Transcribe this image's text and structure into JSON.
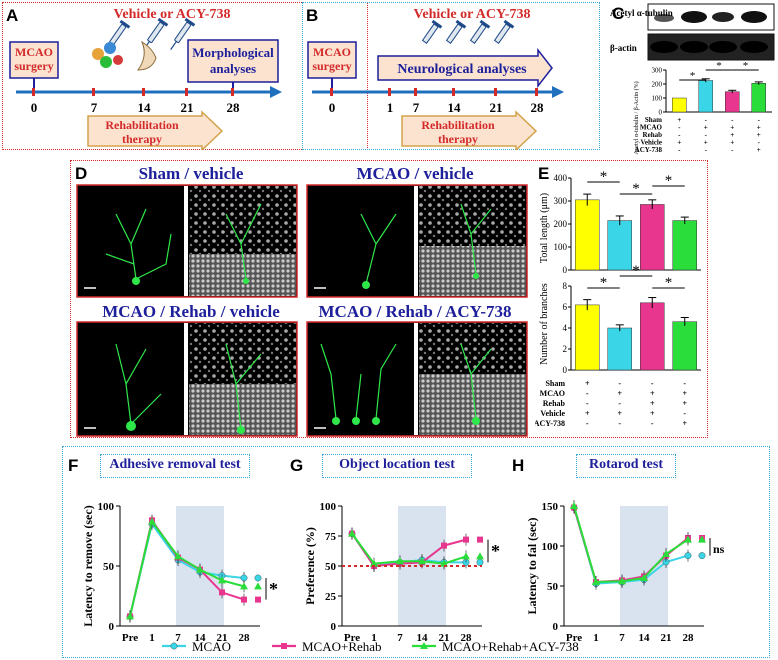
{
  "panelA": {
    "letter": "A",
    "treatment": "Vehicle or ACY-738",
    "surgery": "MCAO surgery",
    "morph": "Morphological analyses",
    "rehab": "Rehabilitation therapy",
    "ticks": [
      "0",
      "7",
      "14",
      "21",
      "28"
    ]
  },
  "panelB": {
    "letter": "B",
    "treatment": "Vehicle or ACY-738",
    "surgery": "MCAO surgery",
    "neuro": "Neurological analyses",
    "rehab": "Rehabilitation therapy",
    "ticks": [
      "0",
      "1",
      "7",
      "14",
      "21",
      "28"
    ]
  },
  "panelC": {
    "letter": "C",
    "blot1": "Acetyl α-tubulin",
    "blot2": "β-actin",
    "ylabel": "Acetyl α-tubulin / β-Actin (%)",
    "row_labels": [
      "Sham",
      "MCAO",
      "Rehab",
      "Vehicle",
      "ACY-738"
    ],
    "signs": [
      [
        "+",
        "-",
        "-",
        "-"
      ],
      [
        "-",
        "+",
        "+",
        "+"
      ],
      [
        "-",
        "-",
        "+",
        "+"
      ],
      [
        "+",
        "+",
        "+",
        "-"
      ],
      [
        "-",
        "-",
        "-",
        "+"
      ]
    ],
    "star": "*",
    "colors": [
      "#ffff00",
      "#3ad6e8",
      "#e8358d",
      "#2bdd3a"
    ]
  },
  "chart_data": [
    {
      "type": "bar",
      "panel": "C",
      "ylabel": "Acetyl α-tubulin / β-Actin (%)",
      "ylim": [
        0,
        300
      ],
      "yticks": [
        "0",
        "100",
        "200",
        "300"
      ],
      "values": [
        100,
        225,
        145,
        205
      ],
      "errors": [
        0,
        12,
        10,
        10
      ]
    },
    {
      "type": "bar",
      "panel": "E-top",
      "ylabel": "Total length (μm)",
      "ylim": [
        0,
        400
      ],
      "yticks": [
        "0",
        "100",
        "200",
        "300",
        "400"
      ],
      "values": [
        305,
        215,
        285,
        215
      ],
      "errors": [
        25,
        20,
        20,
        15
      ]
    },
    {
      "type": "bar",
      "panel": "E-bottom",
      "ylabel": "Number of branches",
      "ylim": [
        0,
        8
      ],
      "yticks": [
        "0",
        "2",
        "4",
        "6",
        "8"
      ],
      "values": [
        6.2,
        4.0,
        6.4,
        4.6
      ],
      "errors": [
        0.5,
        0.3,
        0.5,
        0.4
      ]
    },
    {
      "type": "line",
      "panel": "F",
      "title": "Adhesive removal test",
      "ylabel": "Latency to remove (sec)",
      "x": [
        "Pre",
        "1",
        "7",
        "14",
        "21",
        "28"
      ],
      "ylim": [
        0,
        100
      ],
      "yticks": [
        "0",
        "50",
        "100"
      ],
      "series": [
        {
          "name": "MCAO",
          "values": [
            8,
            85,
            55,
            45,
            42,
            40
          ]
        },
        {
          "name": "MCAO+Rehab",
          "values": [
            8,
            88,
            57,
            47,
            28,
            22
          ]
        },
        {
          "name": "MCAO+Rehab+ACY-738",
          "values": [
            8,
            87,
            58,
            47,
            38,
            33
          ]
        }
      ],
      "annotation": "*"
    },
    {
      "type": "line",
      "panel": "G",
      "title": "Object location test",
      "ylabel": "Preference (%)",
      "x": [
        "Pre",
        "1",
        "7",
        "14",
        "21",
        "28"
      ],
      "ylim": [
        0,
        100
      ],
      "yticks": [
        "0",
        "25",
        "50",
        "75",
        "100"
      ],
      "series": [
        {
          "name": "MCAO",
          "values": [
            77,
            50,
            53,
            55,
            53,
            53
          ]
        },
        {
          "name": "MCAO+Rehab",
          "values": [
            77,
            50,
            52,
            53,
            67,
            72
          ]
        },
        {
          "name": "MCAO+Rehab+ACY-738",
          "values": [
            77,
            52,
            54,
            54,
            52,
            58
          ]
        }
      ],
      "annotation": "*"
    },
    {
      "type": "line",
      "panel": "H",
      "title": "Rotarod test",
      "ylabel": "Latency to fal (sec)",
      "x": [
        "Pre",
        "1",
        "7",
        "14",
        "21",
        "28"
      ],
      "ylim": [
        0,
        150
      ],
      "yticks": [
        "0",
        "50",
        "100",
        "150"
      ],
      "series": [
        {
          "name": "MCAO",
          "values": [
            148,
            53,
            55,
            58,
            80,
            88
          ]
        },
        {
          "name": "MCAO+Rehab",
          "values": [
            148,
            55,
            57,
            62,
            88,
            110
          ]
        },
        {
          "name": "MCAO+Rehab+ACY-738",
          "values": [
            150,
            55,
            56,
            60,
            90,
            108
          ]
        }
      ],
      "annotation": "ns"
    }
  ],
  "panelD": {
    "letter": "D",
    "titles": [
      "Sham / vehicle",
      "MCAO / vehicle",
      "MCAO / Rehab / vehicle",
      "MCAO / Rehab / ACY-738"
    ]
  },
  "panelE": {
    "letter": "E",
    "row_labels": [
      "Sham",
      "MCAO",
      "Rehab",
      "Vehicle",
      "ACY-738"
    ],
    "signs": [
      [
        "+",
        "-",
        "-",
        "-"
      ],
      [
        "-",
        "+",
        "+",
        "+"
      ],
      [
        "-",
        "-",
        "+",
        "+"
      ],
      [
        "+",
        "+",
        "+",
        "-"
      ],
      [
        "-",
        "-",
        "-",
        "+"
      ]
    ],
    "star": "*"
  },
  "bottom": {
    "letters": [
      "F",
      "G",
      "H"
    ],
    "legend": [
      "MCAO",
      "MCAO+Rehab",
      "MCAO+Rehab+ACY-738"
    ],
    "line_colors": [
      "#3ad6e8",
      "#e8358d",
      "#2bdd3a"
    ]
  }
}
